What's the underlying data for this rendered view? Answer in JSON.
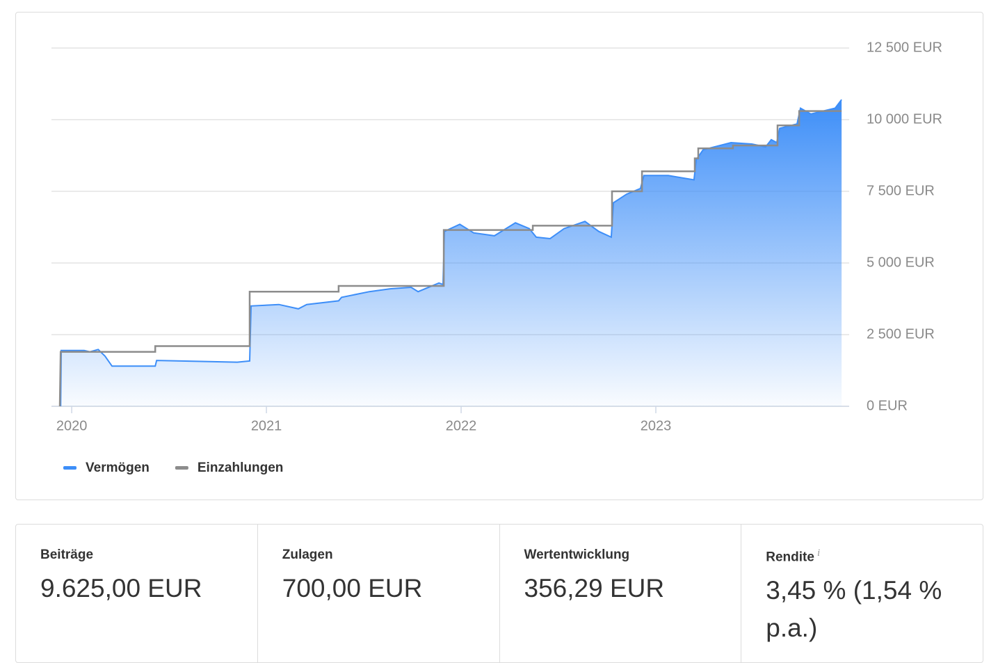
{
  "chart_data": {
    "type": "line",
    "xlim": [
      2019.896,
      2023.993
    ],
    "xticks": [
      2020,
      2021,
      2022,
      2023
    ],
    "ylim": [
      0,
      12500
    ],
    "yticks": [
      {
        "value": 0,
        "label": "0 EUR"
      },
      {
        "value": 2500,
        "label": "2 500 EUR"
      },
      {
        "value": 5000,
        "label": "5 000 EUR"
      },
      {
        "value": 7500,
        "label": "7 500 EUR"
      },
      {
        "value": 10000,
        "label": "10 000 EUR"
      },
      {
        "value": 12500,
        "label": "12 500 EUR"
      }
    ],
    "grid": true,
    "series": [
      {
        "name": "Vermögen",
        "color": "#3d8ef8",
        "area": true,
        "x": [
          2019.943,
          2019.946,
          2020.064,
          2020.093,
          2020.136,
          2020.171,
          2020.207,
          2020.429,
          2020.436,
          2020.564,
          2020.707,
          2020.85,
          2020.914,
          2020.921,
          2021.064,
          2021.164,
          2021.207,
          2021.371,
          2021.386,
          2021.529,
          2021.636,
          2021.743,
          2021.779,
          2021.886,
          2021.907,
          2021.914,
          2021.993,
          2022.064,
          2022.171,
          2022.279,
          2022.35,
          2022.386,
          2022.457,
          2022.529,
          2022.636,
          2022.707,
          2022.771,
          2022.782,
          2022.85,
          2022.921,
          2022.939,
          2023.064,
          2023.196,
          2023.207,
          2023.243,
          2023.386,
          2023.493,
          2023.564,
          2023.593,
          2023.621,
          2023.636,
          2023.725,
          2023.743,
          2023.796,
          2023.921,
          2023.954
        ],
        "values": [
          0,
          1950,
          1950,
          1900,
          1980,
          1750,
          1400,
          1400,
          1600,
          1580,
          1560,
          1540,
          1580,
          3500,
          3550,
          3400,
          3550,
          3680,
          3800,
          4000,
          4100,
          4150,
          4000,
          4300,
          4250,
          6100,
          6350,
          6050,
          5950,
          6400,
          6200,
          5900,
          5850,
          6200,
          6450,
          6100,
          5900,
          7100,
          7400,
          7600,
          8050,
          8050,
          7900,
          8600,
          8950,
          9200,
          9150,
          9050,
          9300,
          9200,
          9700,
          9850,
          10400,
          10200,
          10400,
          10700
        ]
      },
      {
        "name": "Einzahlungen",
        "color": "#8c8c8c",
        "area": false,
        "x": [
          2019.939,
          2019.943,
          2020.429,
          2020.429,
          2020.914,
          2020.914,
          2021.371,
          2021.371,
          2021.911,
          2021.911,
          2022.368,
          2022.368,
          2022.775,
          2022.775,
          2022.929,
          2022.929,
          2023.2,
          2023.2,
          2023.218,
          2023.218,
          2023.396,
          2023.396,
          2023.625,
          2023.625,
          2023.736,
          2023.736,
          2023.954
        ],
        "values": [
          0,
          1900,
          1900,
          2100,
          2100,
          4000,
          4000,
          4200,
          4200,
          6150,
          6150,
          6300,
          6300,
          7500,
          7500,
          8200,
          8200,
          8650,
          8650,
          9000,
          9000,
          9100,
          9100,
          9800,
          9800,
          10300,
          10300
        ]
      }
    ]
  },
  "stats": [
    {
      "label": "Beiträge",
      "value": "9.625,00 EUR"
    },
    {
      "label": "Zulagen",
      "value": "700,00 EUR"
    },
    {
      "label": "Wertentwicklung",
      "value": "356,29 EUR"
    },
    {
      "label": "Rendite",
      "info": "i",
      "value": "3,45 % (1,54 % p.a.)"
    }
  ]
}
